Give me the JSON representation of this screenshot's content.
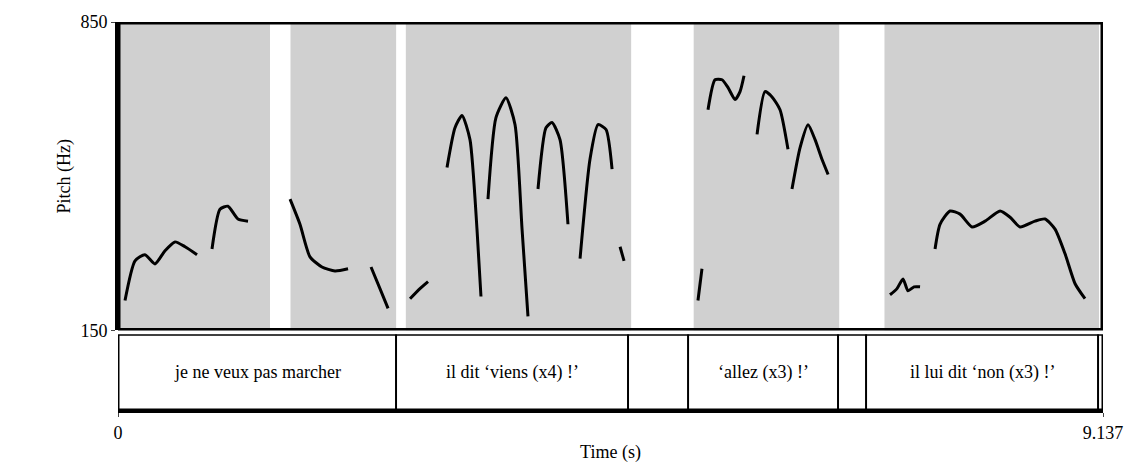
{
  "chart_data": {
    "type": "line",
    "x_label": "Time (s)",
    "y_label": "Pitch (Hz)",
    "xlim": [
      0,
      9.137
    ],
    "xticks": [
      0,
      9.137
    ],
    "ylim": [
      150,
      850
    ],
    "yticks": [
      150,
      850
    ],
    "color": "#000000",
    "x": [
      0.065,
      0.158,
      0.25,
      0.343,
      0.436,
      0.529,
      0.622,
      0.733,
      0.8,
      0.872,
      0.946,
      1.02,
      1.113,
      1.206,
      1.4,
      1.596,
      1.688,
      1.781,
      1.892,
      2.013,
      2.134,
      2.24,
      2.347,
      2.43,
      2.505,
      2.6,
      2.709,
      2.801,
      2.876,
      2.96,
      3.052,
      3.126,
      3.191,
      3.265,
      3.33,
      3.367,
      3.4,
      3.432,
      3.506,
      3.599,
      3.683,
      3.748,
      3.803,
      3.85,
      3.896,
      3.97,
      4.026,
      4.1,
      4.174,
      4.22,
      4.286,
      4.378,
      4.453,
      4.527,
      4.583,
      4.62,
      4.657,
      4.694,
      5.0,
      5.38,
      5.417,
      5.44,
      5.473,
      5.538,
      5.603,
      5.659,
      5.724,
      5.77,
      5.807,
      5.87,
      5.928,
      6.002,
      6.067,
      6.141,
      6.215,
      6.235,
      6.252,
      6.327,
      6.401,
      6.466,
      6.531,
      6.587,
      6.9,
      7.161,
      7.226,
      7.282,
      7.328,
      7.384,
      7.44,
      7.51,
      7.579,
      7.625,
      7.718,
      7.811,
      7.922,
      8.043,
      8.182,
      8.275,
      8.367,
      8.506,
      8.599,
      8.692,
      8.785,
      8.878,
      8.97
    ],
    "values": [
      218,
      308,
      322,
      301,
      331,
      351,
      340,
      322,
      null,
      335,
      425,
      432,
      403,
      398,
      null,
      448,
      391,
      317,
      294,
      285,
      290,
      null,
      294,
      245,
      200,
      null,
      222,
      245,
      261,
      null,
      520,
      610,
      638,
      583,
      380,
      227,
      null,
      448,
      633,
      678,
      617,
      380,
      182,
      null,
      471,
      610,
      622,
      583,
      391,
      null,
      313,
      538,
      617,
      606,
      516,
      null,
      340,
      308,
      null,
      218,
      290,
      null,
      651,
      719,
      719,
      701,
      674,
      692,
      728,
      null,
      595,
      692,
      680,
      651,
      561,
      null,
      471,
      565,
      617,
      583,
      538,
      504,
      null,
      231,
      245,
      267,
      240,
      249,
      249,
      null,
      335,
      391,
      421,
      414,
      385,
      398,
      421,
      407,
      385,
      398,
      403,
      380,
      324,
      256,
      222
    ],
    "spectrogram_segments": [
      [
        0,
        1.41
      ],
      [
        1.6,
        2.58
      ],
      [
        2.67,
        4.76
      ],
      [
        5.34,
        6.69
      ],
      [
        7.11,
        9.1
      ]
    ],
    "boundaries": [
      2.579,
      4.731,
      5.288,
      6.679,
      6.939,
      9.091
    ],
    "intervals": [
      {
        "start": 0,
        "end": 2.579,
        "text": "je ne veux pas marcher"
      },
      {
        "start": 2.579,
        "end": 4.731,
        "text": "il dit ‘viens (x4) !’"
      },
      {
        "start": 5.288,
        "end": 6.679,
        "text": "‘allez (x3) !’"
      },
      {
        "start": 6.939,
        "end": 9.091,
        "text": "il lui dit ‘non (x3) !’"
      }
    ]
  }
}
